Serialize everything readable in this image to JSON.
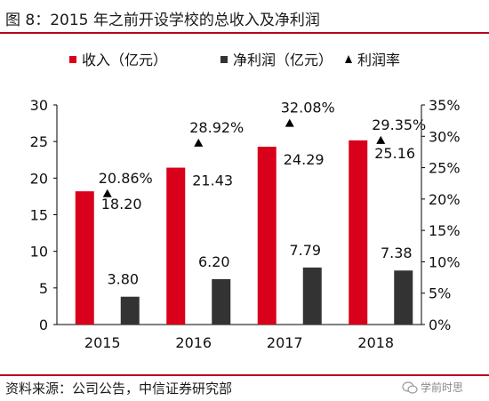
{
  "title": "图 8：2015 年之前开设学校的总收入及净利润",
  "source": "资料来源：公司公告，中信证券研究部",
  "watermark": "学前时思",
  "colors": {
    "revenue": "#d9001b",
    "net_profit": "#333333",
    "rate_marker": "#000000",
    "accent_rule": "#b8001c"
  },
  "chart_data": {
    "type": "bar",
    "title": "",
    "categories": [
      "2015",
      "2016",
      "2017",
      "2018"
    ],
    "series": [
      {
        "name": "收入（亿元）",
        "type": "bar",
        "axis": "left",
        "values": [
          18.2,
          21.43,
          24.29,
          25.16
        ],
        "labels": [
          "18.20",
          "21.43",
          "24.29",
          "25.16"
        ]
      },
      {
        "name": "净利润（亿元）",
        "type": "bar",
        "axis": "left",
        "values": [
          3.8,
          6.2,
          7.79,
          7.38
        ],
        "labels": [
          "3.80",
          "6.20",
          "7.79",
          "7.38"
        ]
      },
      {
        "name": "利润率",
        "type": "scatter",
        "axis": "right",
        "values": [
          20.86,
          28.92,
          32.08,
          29.35
        ],
        "labels": [
          "20.86%",
          "28.92%",
          "32.08%",
          "29.35%"
        ]
      }
    ],
    "y_left": {
      "ylim": [
        0,
        30
      ],
      "ticks": [
        "0",
        "5",
        "10",
        "15",
        "20",
        "25",
        "30"
      ]
    },
    "y_right": {
      "ylim": [
        0,
        35
      ],
      "ticks": [
        "0%",
        "5%",
        "10%",
        "15%",
        "20%",
        "25%",
        "30%",
        "35%"
      ]
    },
    "legend_position": "top",
    "grid": false
  }
}
